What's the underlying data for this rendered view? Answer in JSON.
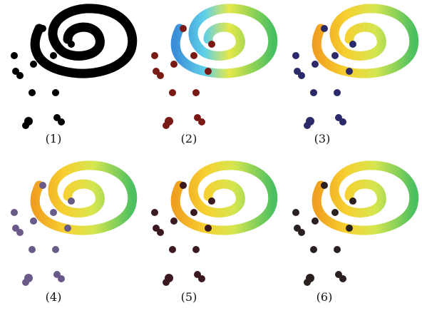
{
  "panels": [
    {
      "label": "(1)"
    },
    {
      "label": "(2)"
    },
    {
      "label": "(3)"
    },
    {
      "label": "(4)"
    },
    {
      "label": "(5)"
    },
    {
      "label": "(6)"
    }
  ]
}
